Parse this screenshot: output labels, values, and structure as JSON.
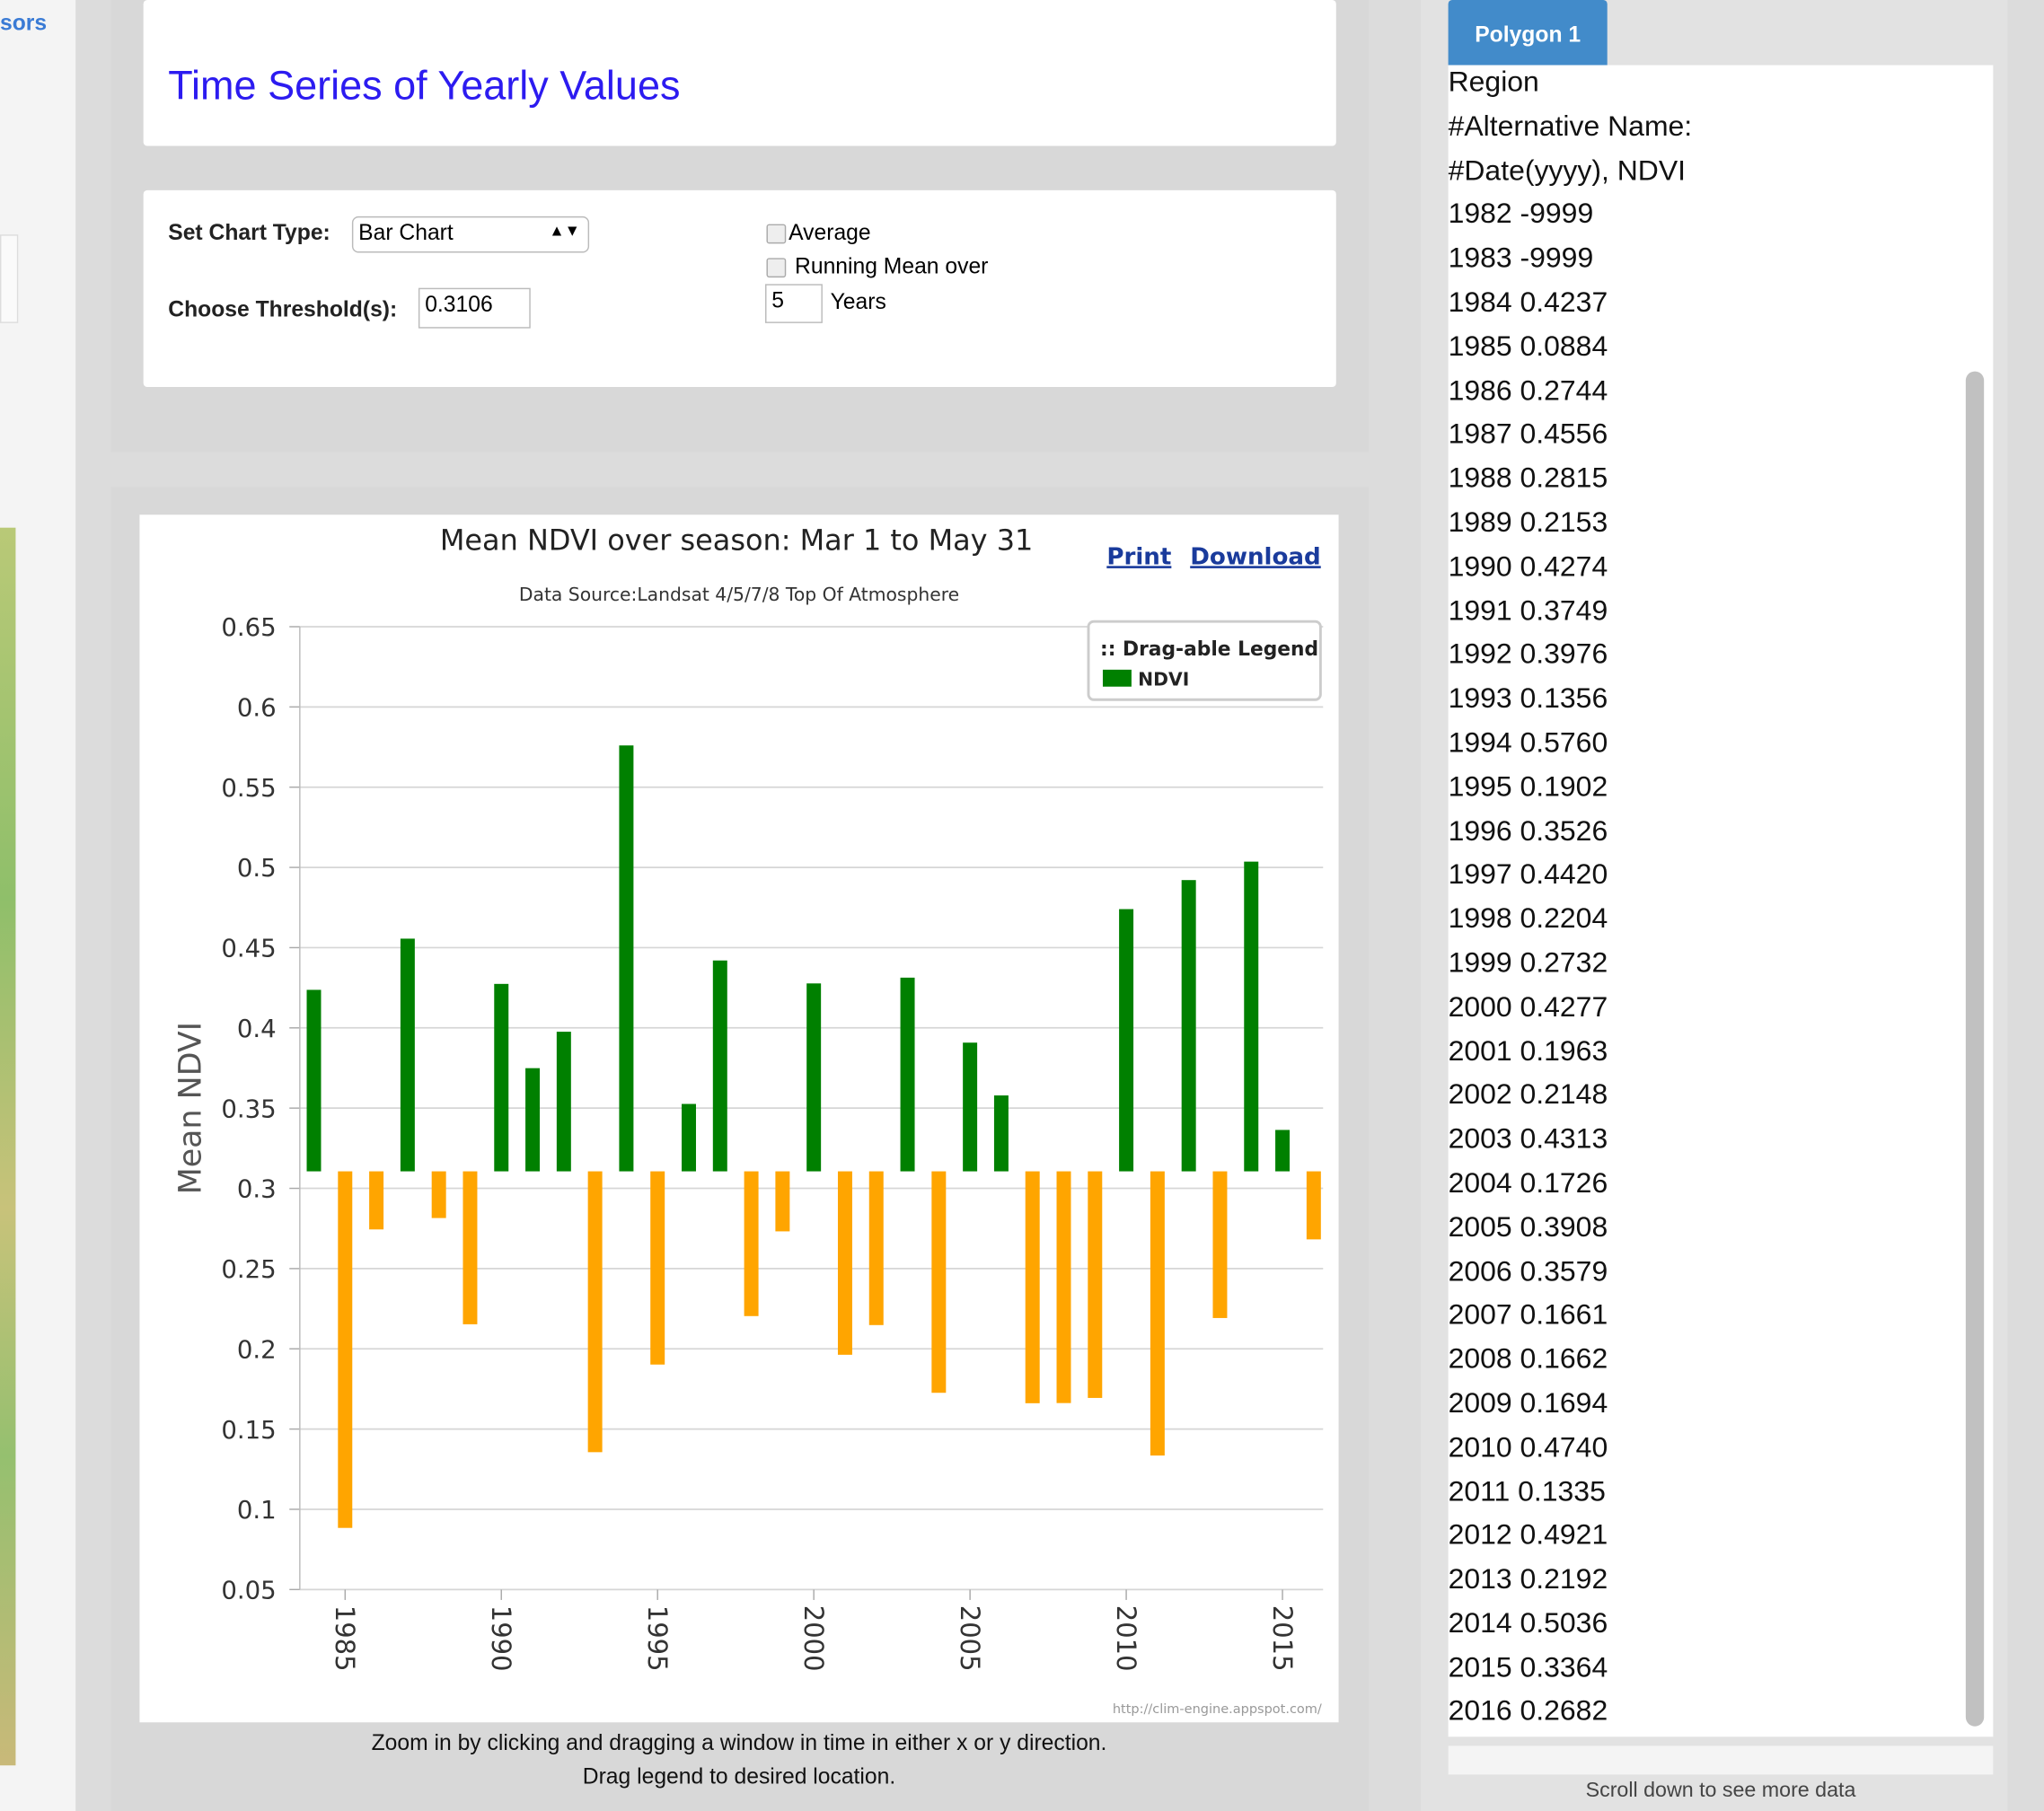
{
  "sidebar": {
    "link": "sors"
  },
  "header": {
    "title": "Time Series of Yearly Values"
  },
  "form": {
    "chart_type_label": "Set Chart Type:",
    "chart_type": "Bar Chart",
    "threshold_label": "Choose Threshold(s):",
    "average_label": "Average",
    "running_mean_label": "Running Mean over",
    "years_value": 5,
    "years_label": "Years"
  },
  "chart_data": {
    "type": "bar",
    "title": "Mean NDVI over season: Mar 1 to May 31",
    "subtitle": "Data Source:Landsat 4/5/7/8 Top Of Atmosphere",
    "y_label": "Mean NDVI",
    "print": "Print",
    "download": "Download",
    "legend_title": ":: Drag-able Legend",
    "legend": "top-right",
    "credit": "http://clim-engine.appspot.com/",
    "threshold": 0.3106,
    "below_color": "#ffa500",
    "grid": true,
    "x": [
      1984,
      1985,
      1986,
      1987,
      1988,
      1989,
      1990,
      1991,
      1992,
      1993,
      1994,
      1995,
      1996,
      1997,
      1998,
      1999,
      2000,
      2001,
      2002,
      2003,
      2004,
      2005,
      2006,
      2007,
      2008,
      2009,
      2010,
      2011,
      2012,
      2013,
      2014,
      2015,
      2016
    ],
    "series": [
      {
        "name": "NDVI",
        "color": "#008000",
        "values": [
          0.4237,
          0.0884,
          0.2744,
          0.4556,
          0.2815,
          0.2153,
          0.4274,
          0.3749,
          0.3976,
          0.1356,
          0.576,
          0.1902,
          0.3526,
          0.442,
          0.2204,
          0.2732,
          0.4277,
          0.1963,
          0.2148,
          0.4313,
          0.1726,
          0.3908,
          0.3579,
          0.1661,
          0.1662,
          0.1694,
          0.474,
          0.1335,
          0.4921,
          0.2192,
          0.5036,
          0.3364,
          0.2682
        ]
      }
    ],
    "xlim": [
      1983.55,
      2016.3
    ],
    "xticks": [
      1985,
      1990,
      1995,
      2000,
      2005,
      2010,
      2015
    ],
    "ylim": [
      0.05,
      0.65
    ],
    "yticks": [
      0.05,
      0.1,
      0.15,
      0.2,
      0.25,
      0.3,
      0.35,
      0.4,
      0.45,
      0.5,
      0.55,
      0.6,
      0.65
    ]
  },
  "chart_notes": [
    "Zoom in by clicking and dragging a window in time in either x or y direction.",
    "Drag legend to desired location."
  ],
  "data_panel": {
    "tab": "Polygon 1",
    "lines": [
      "Region",
      "#Alternative Name:",
      "#Date(yyyy), NDVI",
      "1982 -9999",
      "1983 -9999",
      "1984 0.4237",
      "1985 0.0884",
      "1986 0.2744",
      "1987 0.4556",
      "1988 0.2815",
      "1989 0.2153",
      "1990 0.4274",
      "1991 0.3749",
      "1992 0.3976",
      "1993 0.1356",
      "1994 0.5760",
      "1995 0.1902",
      "1996 0.3526",
      "1997 0.4420",
      "1998 0.2204",
      "1999 0.2732",
      "2000 0.4277",
      "2001 0.1963",
      "2002 0.2148",
      "2003 0.4313",
      "2004 0.1726",
      "2005 0.3908",
      "2006 0.3579",
      "2007 0.1661",
      "2008 0.1662",
      "2009 0.1694",
      "2010 0.4740",
      "2011 0.1335",
      "2012 0.4921",
      "2013 0.2192",
      "2014 0.5036",
      "2015 0.3364",
      "2016 0.2682"
    ],
    "footer": "Scroll down to see more data"
  }
}
